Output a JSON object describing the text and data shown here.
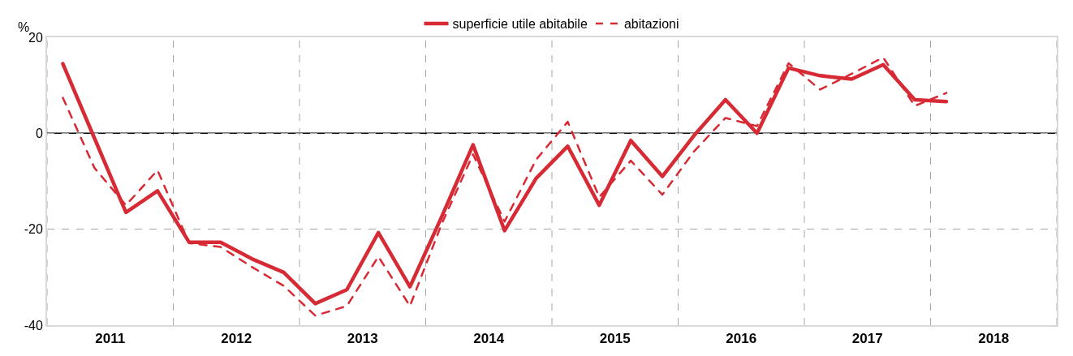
{
  "chart_data": {
    "type": "line",
    "ylabel": "%",
    "x": [
      2011.125,
      2011.375,
      2011.625,
      2011.875,
      2012.125,
      2012.375,
      2012.625,
      2012.875,
      2013.125,
      2013.375,
      2013.625,
      2013.875,
      2014.125,
      2014.375,
      2014.625,
      2014.875,
      2015.125,
      2015.375,
      2015.625,
      2015.875,
      2016.125,
      2016.375,
      2016.625,
      2016.875,
      2017.125,
      2017.375,
      2017.625,
      2017.875,
      2018.125
    ],
    "series": [
      {
        "name": "superficie utile abitabile",
        "color": "#d62a35",
        "line_style": "solid",
        "values": [
          14.5,
          -1,
          -16.5,
          -12,
          -22.7,
          -22.7,
          -26.2,
          -29,
          -35.5,
          -32.6,
          -20.7,
          -32,
          -17.5,
          -2.4,
          -20.3,
          -9.4,
          -2.7,
          -15,
          -1.5,
          -9,
          -0.5,
          7,
          0,
          13.6,
          12,
          11.3,
          14.3,
          7,
          6.6
        ]
      },
      {
        "name": "abitazioni",
        "color": "#d62a35",
        "line_style": "dashed",
        "values": [
          7.4,
          -7.2,
          -15,
          -7.7,
          -22.9,
          -23.7,
          -27.9,
          -31.8,
          -38,
          -36,
          -25.7,
          -36,
          -19,
          -4.4,
          -18.4,
          -5.5,
          2.4,
          -13.3,
          -5.7,
          -12.8,
          -3.8,
          3.2,
          1.5,
          14.6,
          9.1,
          12.4,
          15.8,
          5.7,
          8.4
        ]
      }
    ],
    "xlim": [
      2011,
      2019
    ],
    "xticks": [
      {
        "value": 2011,
        "label": null
      },
      {
        "value": 2011.5,
        "label": "2011"
      },
      {
        "value": 2012,
        "label": null
      },
      {
        "value": 2012.5,
        "label": "2012"
      },
      {
        "value": 2013,
        "label": null
      },
      {
        "value": 2013.5,
        "label": "2013"
      },
      {
        "value": 2014,
        "label": null
      },
      {
        "value": 2014.5,
        "label": "2014"
      },
      {
        "value": 2015,
        "label": null
      },
      {
        "value": 2015.5,
        "label": "2015"
      },
      {
        "value": 2016,
        "label": null
      },
      {
        "value": 2016.5,
        "label": "2016"
      },
      {
        "value": 2017,
        "label": null
      },
      {
        "value": 2017.5,
        "label": "2017"
      },
      {
        "value": 2018,
        "label": null
      },
      {
        "value": 2018.5,
        "label": "2018"
      },
      {
        "value": 2019,
        "label": null
      }
    ],
    "ylim": [
      -40,
      20
    ],
    "yticks": [
      -40,
      -20,
      0,
      20
    ],
    "ref_lines": [
      {
        "axis": "y",
        "value": 0,
        "color": "#000000",
        "line_style": "solid"
      }
    ],
    "grid": true,
    "legend": "top",
    "marker": "none"
  }
}
